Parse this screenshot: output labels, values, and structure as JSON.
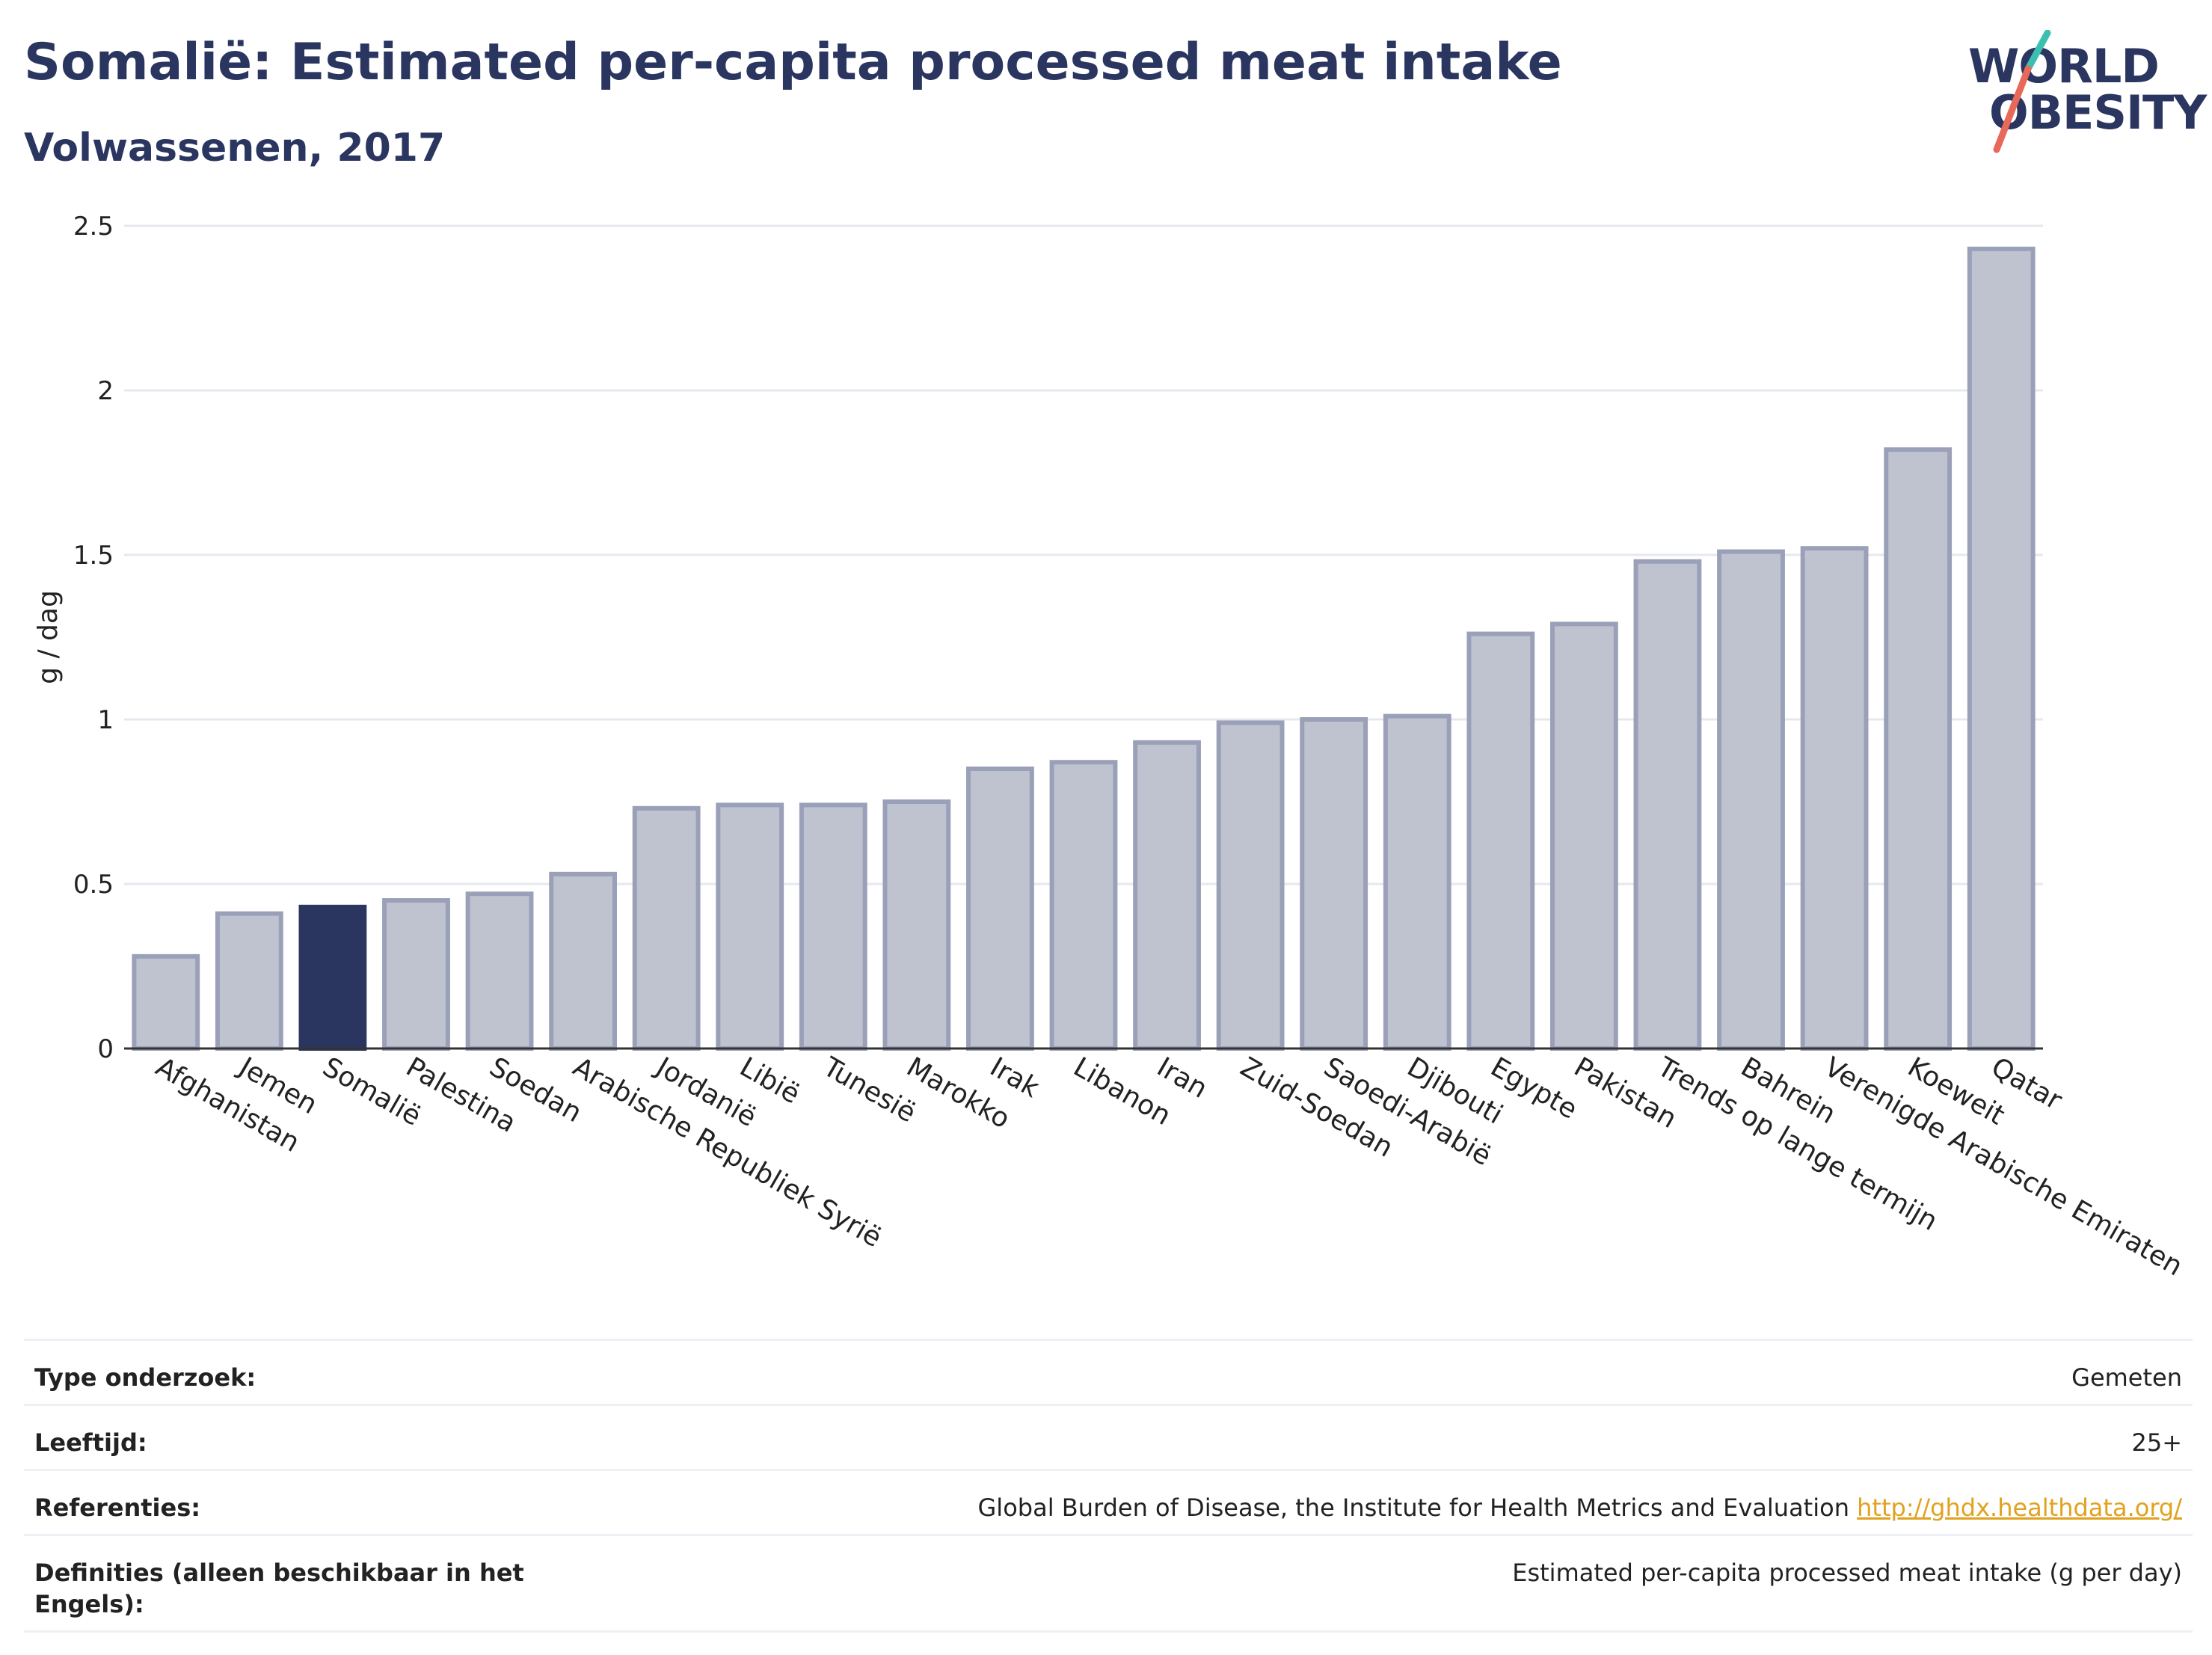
{
  "title": "Somalië: Estimated per-capita processed meat intake",
  "subtitle": "Volwassenen, 2017",
  "logo": {
    "line1": "WORLD",
    "line2": "OBESITY"
  },
  "colors": {
    "highlight": "#2a3660",
    "bar": "#bfc3d0",
    "bar_stroke": "#9aa0b8",
    "grid": "#e6e8ef",
    "link": "#e0a21f"
  },
  "chart_data": {
    "type": "bar",
    "title": "Somalië: Estimated per-capita processed meat intake",
    "ylabel": "g / dag",
    "xlabel": "",
    "ylim": [
      0,
      2.5
    ],
    "yticks": [
      0,
      0.5,
      1,
      1.5,
      2,
      2.5
    ],
    "ytick_labels": [
      "0",
      "0.5",
      "1",
      "1.5",
      "2",
      "2.5"
    ],
    "grid": true,
    "highlight": "Somalië",
    "categories": [
      "Afghanistan",
      "Jemen",
      "Somalië",
      "Palestina",
      "Soedan",
      "Arabische Republiek Syrië",
      "Jordanië",
      "Libië",
      "Tunesië",
      "Marokko",
      "Irak",
      "Libanon",
      "Iran",
      "Zuid-Soedan",
      "Saoedi-Arabië",
      "Djibouti",
      "Egypte",
      "Pakistan",
      "Trends op lange termijn",
      "Bahrein",
      "Verenigde Arabische Emiraten",
      "Koeweit",
      "Qatar"
    ],
    "values": [
      0.28,
      0.41,
      0.43,
      0.45,
      0.47,
      0.53,
      0.73,
      0.74,
      0.74,
      0.75,
      0.85,
      0.87,
      0.93,
      0.99,
      1.0,
      1.01,
      1.26,
      1.29,
      1.48,
      1.51,
      1.52,
      1.82,
      2.43
    ]
  },
  "info": {
    "type_label": "Type onderzoek:",
    "type_value": "Gemeten",
    "age_label": "Leeftijd:",
    "age_value": "25+",
    "ref_label": "Referenties:",
    "ref_value": "Global Burden of Disease, the Institute for Health Metrics and Evaluation",
    "ref_link": "http://ghdx.healthdata.org/",
    "def_label": "Definities (alleen beschikbaar in het Engels):",
    "def_value": "Estimated per-capita processed meat intake (g per day)"
  }
}
